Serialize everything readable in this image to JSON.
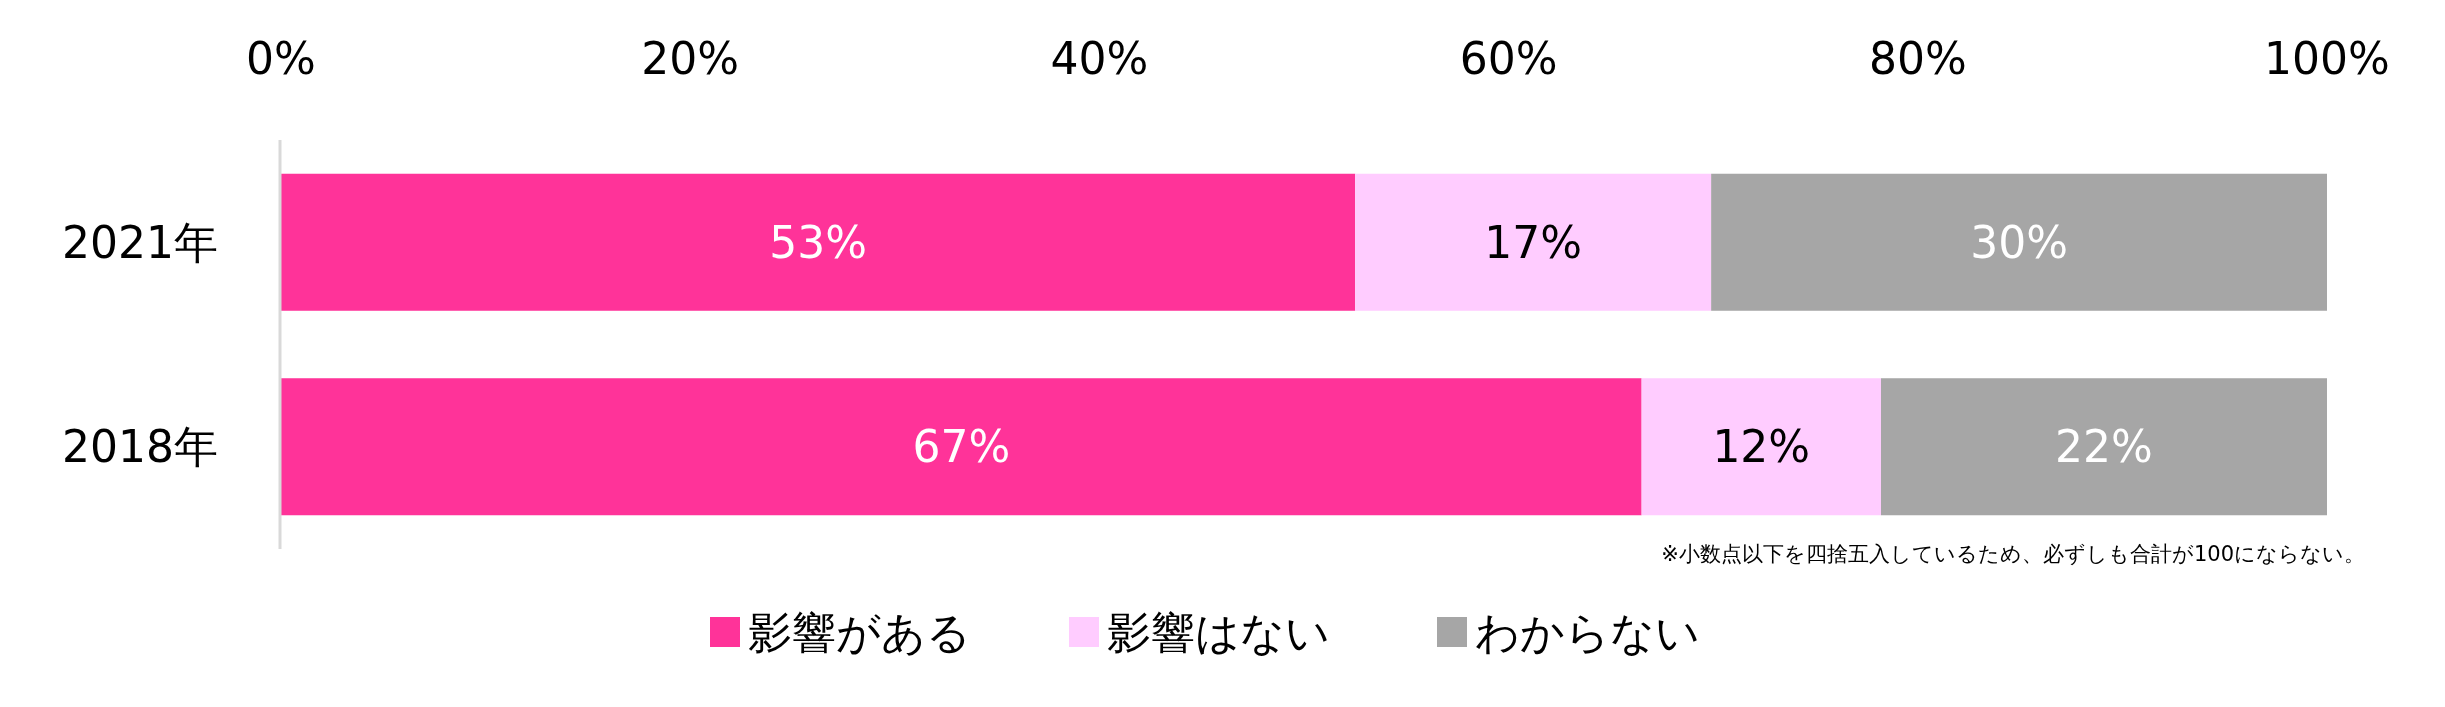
{
  "chart_data": {
    "type": "bar",
    "orientation": "horizontal",
    "stacked": true,
    "categories": [
      "2021年",
      "2018年"
    ],
    "series": [
      {
        "name": "影響がある",
        "color": "#ff3399",
        "values": [
          52.5,
          66.5
        ],
        "value_labels": [
          "53%",
          "67%"
        ]
      },
      {
        "name": "影響はない",
        "color": "#ffccff",
        "values": [
          17.4,
          11.7
        ],
        "value_labels": [
          "17%",
          "12%"
        ]
      },
      {
        "name": "わからない",
        "color": "#a6a6a6",
        "values": [
          30.1,
          21.8
        ],
        "value_labels": [
          "30%",
          "22%"
        ]
      }
    ],
    "xlim": [
      0,
      100
    ],
    "xticks": [
      {
        "value": 0,
        "label": "0%"
      },
      {
        "value": 20,
        "label": "20%"
      },
      {
        "value": 40,
        "label": "40%"
      },
      {
        "value": 60,
        "label": "60%"
      },
      {
        "value": 80,
        "label": "80%"
      },
      {
        "value": 100,
        "label": "100%"
      }
    ],
    "legend": "bottom",
    "grid": false,
    "annotations": [
      "※小数点以下を四捨五入しているため、必ずしも合計が100にならない。"
    ]
  }
}
